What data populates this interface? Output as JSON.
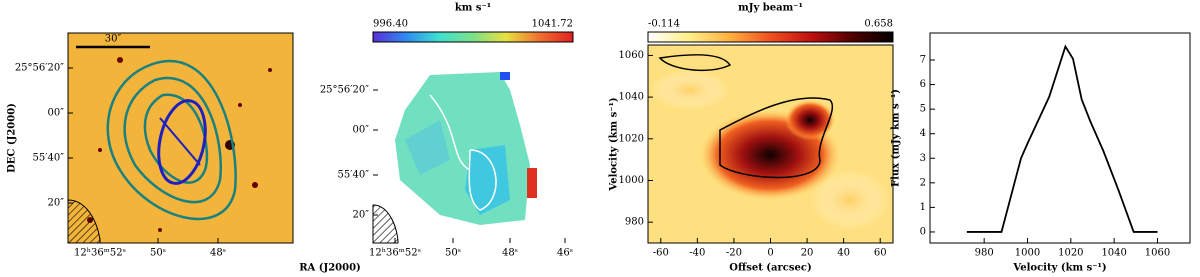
{
  "chart_data": [
    {
      "type": "image",
      "ylabel": "DEC (J2000)",
      "xlabel": "RA (J2000)",
      "scalebar_label": "30″",
      "ytick_labels": [
        "25°56′20″",
        "00″",
        "55′40″",
        "20″"
      ],
      "xtick_labels": [
        "12ʰ36ᵐ52ˢ",
        "50ˢ",
        "48ˢ"
      ]
    },
    {
      "type": "image",
      "ytick_labels": [
        "25°56′20″",
        "00″",
        "55′40″",
        "20″"
      ],
      "xtick_labels": [
        "12ʰ36ᵐ52ˢ",
        "50ˢ",
        "48ˢ",
        "46ˢ"
      ],
      "colorbar": {
        "label": "km s⁻¹",
        "lim": [
          {
            "value": 996.4,
            "label": "996.40"
          },
          1041.72
        ],
        "colors": [
          "#5a2fd8",
          "#2f8cf0",
          "#40e0d0",
          "#7ee08a",
          "#e8e040",
          "#f07030",
          "#e02020"
        ]
      }
    },
    {
      "type": "heatmap",
      "xlabel": "Offset (arcsec)",
      "ylabel": "Velocity (km s⁻¹)",
      "xlim": [
        -67,
        67
      ],
      "ylim": [
        970,
        1065
      ],
      "xticks": [
        -60,
        -40,
        -20,
        0,
        20,
        40,
        60
      ],
      "yticks": [
        980,
        1000,
        1020,
        1040,
        1060
      ],
      "colorbar": {
        "label": "mJy beam⁻¹",
        "lim": [
          -0.114,
          0.658
        ],
        "colors": [
          "#ffffff",
          "#fff08a",
          "#ffb040",
          "#f05020",
          "#c01010",
          "#500000",
          "#000000"
        ]
      }
    },
    {
      "type": "line",
      "xlabel": "Velocity (km s⁻¹)",
      "ylabel": "Flux (mJy km s⁻¹)",
      "xlim": [
        955,
        1075
      ],
      "ylim": [
        -0.45,
        8.1
      ],
      "xticks": [
        980,
        1000,
        1020,
        1040,
        1060
      ],
      "yticks": [
        0,
        1,
        2,
        3,
        4,
        5,
        6,
        7
      ],
      "color": "#000000",
      "x": [
        972,
        988,
        997,
        1000,
        1010,
        1017.5,
        1021,
        1025,
        1029,
        1035,
        1042,
        1049,
        1060
      ],
      "values": [
        0,
        0,
        3,
        3.6,
        5.5,
        7.55,
        7.05,
        5.4,
        4.5,
        3.3,
        1.7,
        0,
        0
      ]
    }
  ]
}
